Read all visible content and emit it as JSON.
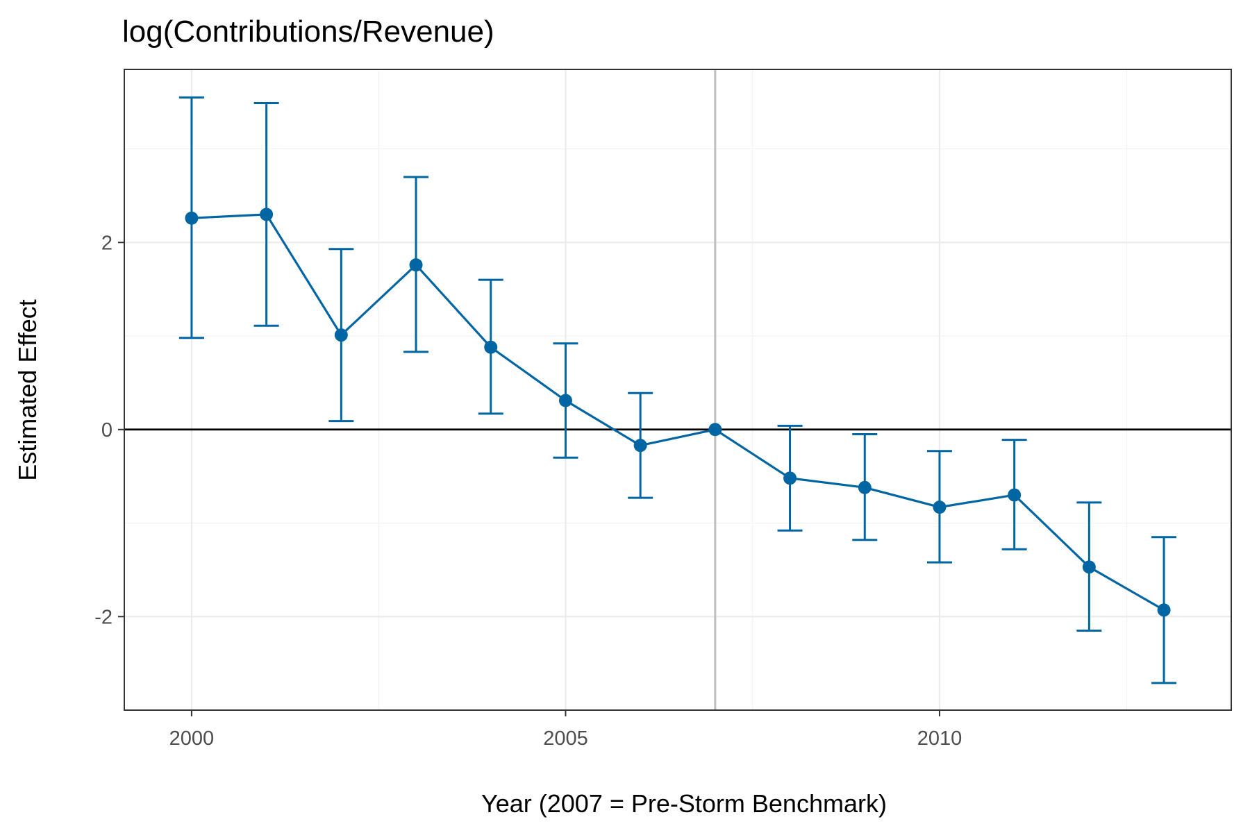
{
  "chart_data": {
    "type": "line",
    "title": "log(Contributions/Revenue)",
    "xlabel": "Year (2007 = Pre-Storm Benchmark)",
    "ylabel": "Estimated Effect",
    "xlim": [
      1999.1,
      2013.9
    ],
    "ylim": [
      -3.0,
      3.85
    ],
    "x_ticks": [
      2000,
      2005,
      2010
    ],
    "x_tick_labels": [
      "2000",
      "2005",
      "2010"
    ],
    "y_ticks": [
      -2,
      0,
      2
    ],
    "y_tick_labels": [
      "-2",
      "0",
      "2"
    ],
    "grid": true,
    "reference_lines": {
      "vertical_x": 2007,
      "horizontal_y": 0
    },
    "series": [
      {
        "x": [
          2000,
          2001,
          2002,
          2003,
          2004,
          2005,
          2006,
          2007,
          2008,
          2009,
          2010,
          2011,
          2012,
          2013
        ],
        "y": [
          2.26,
          2.3,
          1.01,
          1.76,
          0.88,
          0.31,
          -0.17,
          0.0,
          -0.52,
          -0.62,
          -0.83,
          -0.7,
          -1.47,
          -1.93
        ],
        "lower": [
          0.98,
          1.11,
          0.09,
          0.83,
          0.17,
          -0.3,
          -0.73,
          0.0,
          -1.08,
          -1.18,
          -1.42,
          -1.28,
          -2.15,
          -2.71
        ],
        "upper": [
          3.55,
          3.49,
          1.93,
          2.7,
          1.6,
          0.92,
          0.39,
          0.0,
          0.04,
          -0.05,
          -0.23,
          -0.11,
          -0.78,
          -1.15
        ]
      }
    ],
    "colors": {
      "series": "#0066a3",
      "reference_vertical": "#bebebe",
      "reference_horizontal": "#000000",
      "panel_border": "#333333"
    }
  }
}
